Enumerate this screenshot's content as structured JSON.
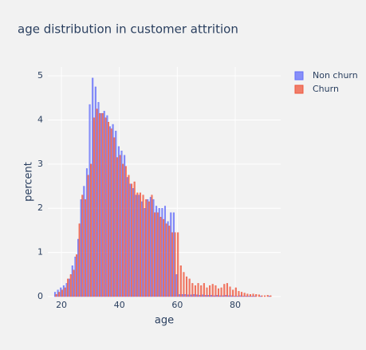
{
  "chart_data": {
    "type": "bar",
    "title": "age distribution in customer attrition",
    "x_label": "age",
    "y_label": "percent",
    "x": [
      18,
      19,
      20,
      21,
      22,
      23,
      24,
      25,
      26,
      27,
      28,
      29,
      30,
      31,
      32,
      33,
      34,
      35,
      36,
      37,
      38,
      39,
      40,
      41,
      42,
      43,
      44,
      45,
      46,
      47,
      48,
      49,
      50,
      51,
      52,
      53,
      54,
      55,
      56,
      57,
      58,
      59,
      60,
      61,
      62,
      63,
      64,
      65,
      66,
      67,
      68,
      69,
      70,
      71,
      72,
      73,
      74,
      75,
      76,
      77,
      78,
      79,
      80,
      81,
      82,
      83,
      84,
      85,
      86,
      87,
      88,
      89,
      90,
      91,
      92
    ],
    "series": [
      {
        "name": "Non churn",
        "color": "#636efa",
        "values": [
          0.1,
          0.15,
          0.2,
          0.25,
          0.3,
          0.4,
          0.7,
          0.9,
          1.3,
          2.2,
          2.5,
          2.9,
          4.35,
          4.95,
          4.75,
          4.4,
          4.15,
          4.2,
          4.1,
          3.85,
          3.9,
          3.75,
          3.4,
          3.3,
          3.2,
          2.7,
          2.55,
          2.45,
          2.3,
          2.3,
          2.15,
          2.0,
          2.2,
          2.25,
          2.2,
          2.05,
          2.0,
          2.0,
          2.05,
          1.7,
          1.9,
          1.9,
          0.5,
          0.05,
          0.05,
          0.05,
          0.04,
          0.04,
          0.05,
          0.04,
          0.03,
          0.04,
          0.03,
          0.03,
          0.03,
          0.02,
          0.03,
          0.02,
          0.02,
          0.03,
          0.02,
          0.02,
          0.01,
          0.01,
          0.02,
          0.01,
          0.01,
          0.01,
          0.01,
          0.01,
          0,
          0.01,
          0,
          0,
          0.01
        ]
      },
      {
        "name": "Churn",
        "color": "#ef553b",
        "values": [
          0.05,
          0.1,
          0.15,
          0.2,
          0.4,
          0.5,
          0.6,
          0.95,
          1.65,
          2.3,
          2.2,
          2.75,
          3.0,
          4.05,
          4.25,
          4.15,
          4.15,
          4.05,
          3.95,
          3.8,
          3.6,
          3.15,
          3.2,
          3.0,
          2.95,
          2.75,
          2.55,
          2.6,
          2.35,
          2.35,
          2.3,
          2.2,
          2.15,
          2.3,
          1.9,
          1.9,
          1.8,
          1.75,
          1.65,
          1.6,
          1.45,
          1.45,
          1.45,
          0.7,
          0.55,
          0.45,
          0.4,
          0.3,
          0.25,
          0.3,
          0.25,
          0.3,
          0.2,
          0.25,
          0.28,
          0.25,
          0.18,
          0.2,
          0.28,
          0.3,
          0.22,
          0.15,
          0.2,
          0.12,
          0.1,
          0.08,
          0.06,
          0.05,
          0.06,
          0.05,
          0.04,
          0.02,
          0.02,
          0.03,
          0.02
        ]
      }
    ],
    "xlim": [
      15.3,
      95.7
    ],
    "ylim": [
      0,
      5.2
    ],
    "xticks": [
      20,
      40,
      60,
      80
    ],
    "yticks": [
      0,
      1,
      2,
      3,
      4,
      5
    ],
    "grid": true,
    "legend": "top-right"
  }
}
